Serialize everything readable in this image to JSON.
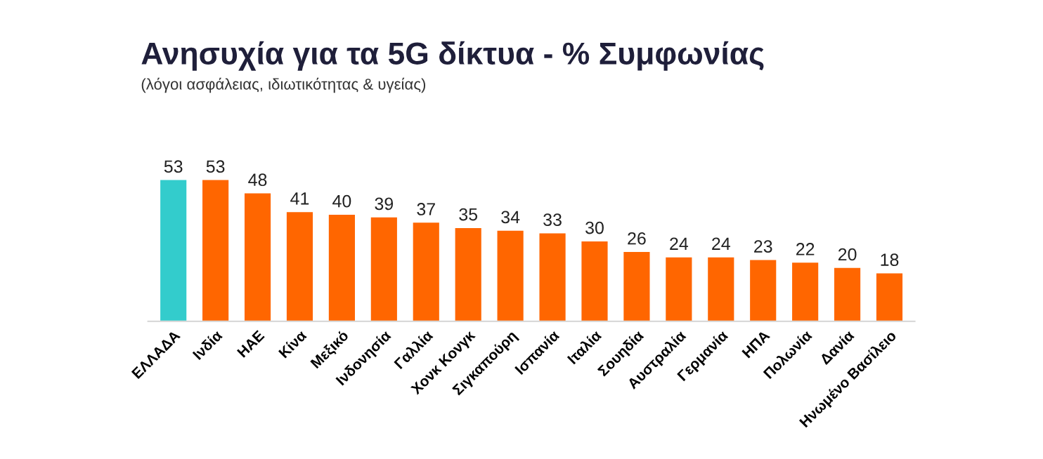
{
  "chart_data": {
    "type": "bar",
    "title": "Ανησυχία για τα 5G δίκτυα - % Συμφωνίας",
    "subtitle": "(λόγοι ασφάλειας, ιδιωτικότητας & υγείας)",
    "categories": [
      "ΕΛΛΑΔΑ",
      "Ινδία",
      "ΗΑΕ",
      "Κίνα",
      "Μεξικό",
      "Ινδονησία",
      "Γαλλία",
      "Χονκ Κονγκ",
      "Σιγκαπούρη",
      "Ισπανία",
      "Ιταλία",
      "Σουηδία",
      "Αυστραλία",
      "Γερμανία",
      "ΗΠΑ",
      "Πολωνία",
      "Δανία",
      "Ηνωμένο Βασίλειο"
    ],
    "values": [
      53,
      53,
      48,
      41,
      40,
      39,
      37,
      35,
      34,
      33,
      30,
      26,
      24,
      24,
      23,
      22,
      20,
      18
    ],
    "colors": [
      "#33cccc",
      "#ff6600",
      "#ff6600",
      "#ff6600",
      "#ff6600",
      "#ff6600",
      "#ff6600",
      "#ff6600",
      "#ff6600",
      "#ff6600",
      "#ff6600",
      "#ff6600",
      "#ff6600",
      "#ff6600",
      "#ff6600",
      "#ff6600",
      "#ff6600",
      "#ff6600"
    ],
    "data_labels": true,
    "grid": false,
    "legend": false
  }
}
